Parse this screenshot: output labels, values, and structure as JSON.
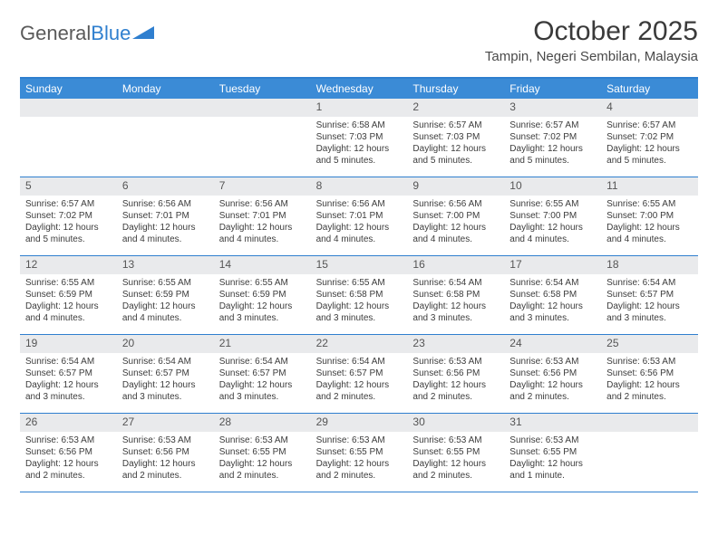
{
  "logo": {
    "text1": "General",
    "text2": "Blue"
  },
  "title": "October 2025",
  "location": "Tampin, Negeri Sembilan, Malaysia",
  "colors": {
    "header_bg": "#3b8bd6",
    "header_text": "#ffffff",
    "border": "#2f7fcf",
    "daynum_bg": "#e9eaec",
    "daynum_text": "#555555",
    "body_text": "#3c3c3c",
    "page_bg": "#ffffff",
    "logo_gray": "#5a5a5a",
    "logo_blue": "#2f7fcf"
  },
  "typography": {
    "title_fontsize": 30,
    "location_fontsize": 15,
    "dayhead_fontsize": 12,
    "daynum_fontsize": 12,
    "cell_fontsize": 10
  },
  "day_headers": [
    "Sunday",
    "Monday",
    "Tuesday",
    "Wednesday",
    "Thursday",
    "Friday",
    "Saturday"
  ],
  "weeks": [
    [
      {
        "day": "",
        "lines": []
      },
      {
        "day": "",
        "lines": []
      },
      {
        "day": "",
        "lines": []
      },
      {
        "day": "1",
        "lines": [
          "Sunrise: 6:58 AM",
          "Sunset: 7:03 PM",
          "Daylight: 12 hours and 5 minutes."
        ]
      },
      {
        "day": "2",
        "lines": [
          "Sunrise: 6:57 AM",
          "Sunset: 7:03 PM",
          "Daylight: 12 hours and 5 minutes."
        ]
      },
      {
        "day": "3",
        "lines": [
          "Sunrise: 6:57 AM",
          "Sunset: 7:02 PM",
          "Daylight: 12 hours and 5 minutes."
        ]
      },
      {
        "day": "4",
        "lines": [
          "Sunrise: 6:57 AM",
          "Sunset: 7:02 PM",
          "Daylight: 12 hours and 5 minutes."
        ]
      }
    ],
    [
      {
        "day": "5",
        "lines": [
          "Sunrise: 6:57 AM",
          "Sunset: 7:02 PM",
          "Daylight: 12 hours and 5 minutes."
        ]
      },
      {
        "day": "6",
        "lines": [
          "Sunrise: 6:56 AM",
          "Sunset: 7:01 PM",
          "Daylight: 12 hours and 4 minutes."
        ]
      },
      {
        "day": "7",
        "lines": [
          "Sunrise: 6:56 AM",
          "Sunset: 7:01 PM",
          "Daylight: 12 hours and 4 minutes."
        ]
      },
      {
        "day": "8",
        "lines": [
          "Sunrise: 6:56 AM",
          "Sunset: 7:01 PM",
          "Daylight: 12 hours and 4 minutes."
        ]
      },
      {
        "day": "9",
        "lines": [
          "Sunrise: 6:56 AM",
          "Sunset: 7:00 PM",
          "Daylight: 12 hours and 4 minutes."
        ]
      },
      {
        "day": "10",
        "lines": [
          "Sunrise: 6:55 AM",
          "Sunset: 7:00 PM",
          "Daylight: 12 hours and 4 minutes."
        ]
      },
      {
        "day": "11",
        "lines": [
          "Sunrise: 6:55 AM",
          "Sunset: 7:00 PM",
          "Daylight: 12 hours and 4 minutes."
        ]
      }
    ],
    [
      {
        "day": "12",
        "lines": [
          "Sunrise: 6:55 AM",
          "Sunset: 6:59 PM",
          "Daylight: 12 hours and 4 minutes."
        ]
      },
      {
        "day": "13",
        "lines": [
          "Sunrise: 6:55 AM",
          "Sunset: 6:59 PM",
          "Daylight: 12 hours and 4 minutes."
        ]
      },
      {
        "day": "14",
        "lines": [
          "Sunrise: 6:55 AM",
          "Sunset: 6:59 PM",
          "Daylight: 12 hours and 3 minutes."
        ]
      },
      {
        "day": "15",
        "lines": [
          "Sunrise: 6:55 AM",
          "Sunset: 6:58 PM",
          "Daylight: 12 hours and 3 minutes."
        ]
      },
      {
        "day": "16",
        "lines": [
          "Sunrise: 6:54 AM",
          "Sunset: 6:58 PM",
          "Daylight: 12 hours and 3 minutes."
        ]
      },
      {
        "day": "17",
        "lines": [
          "Sunrise: 6:54 AM",
          "Sunset: 6:58 PM",
          "Daylight: 12 hours and 3 minutes."
        ]
      },
      {
        "day": "18",
        "lines": [
          "Sunrise: 6:54 AM",
          "Sunset: 6:57 PM",
          "Daylight: 12 hours and 3 minutes."
        ]
      }
    ],
    [
      {
        "day": "19",
        "lines": [
          "Sunrise: 6:54 AM",
          "Sunset: 6:57 PM",
          "Daylight: 12 hours and 3 minutes."
        ]
      },
      {
        "day": "20",
        "lines": [
          "Sunrise: 6:54 AM",
          "Sunset: 6:57 PM",
          "Daylight: 12 hours and 3 minutes."
        ]
      },
      {
        "day": "21",
        "lines": [
          "Sunrise: 6:54 AM",
          "Sunset: 6:57 PM",
          "Daylight: 12 hours and 3 minutes."
        ]
      },
      {
        "day": "22",
        "lines": [
          "Sunrise: 6:54 AM",
          "Sunset: 6:57 PM",
          "Daylight: 12 hours and 2 minutes."
        ]
      },
      {
        "day": "23",
        "lines": [
          "Sunrise: 6:53 AM",
          "Sunset: 6:56 PM",
          "Daylight: 12 hours and 2 minutes."
        ]
      },
      {
        "day": "24",
        "lines": [
          "Sunrise: 6:53 AM",
          "Sunset: 6:56 PM",
          "Daylight: 12 hours and 2 minutes."
        ]
      },
      {
        "day": "25",
        "lines": [
          "Sunrise: 6:53 AM",
          "Sunset: 6:56 PM",
          "Daylight: 12 hours and 2 minutes."
        ]
      }
    ],
    [
      {
        "day": "26",
        "lines": [
          "Sunrise: 6:53 AM",
          "Sunset: 6:56 PM",
          "Daylight: 12 hours and 2 minutes."
        ]
      },
      {
        "day": "27",
        "lines": [
          "Sunrise: 6:53 AM",
          "Sunset: 6:56 PM",
          "Daylight: 12 hours and 2 minutes."
        ]
      },
      {
        "day": "28",
        "lines": [
          "Sunrise: 6:53 AM",
          "Sunset: 6:55 PM",
          "Daylight: 12 hours and 2 minutes."
        ]
      },
      {
        "day": "29",
        "lines": [
          "Sunrise: 6:53 AM",
          "Sunset: 6:55 PM",
          "Daylight: 12 hours and 2 minutes."
        ]
      },
      {
        "day": "30",
        "lines": [
          "Sunrise: 6:53 AM",
          "Sunset: 6:55 PM",
          "Daylight: 12 hours and 2 minutes."
        ]
      },
      {
        "day": "31",
        "lines": [
          "Sunrise: 6:53 AM",
          "Sunset: 6:55 PM",
          "Daylight: 12 hours and 1 minute."
        ]
      },
      {
        "day": "",
        "lines": []
      }
    ]
  ]
}
